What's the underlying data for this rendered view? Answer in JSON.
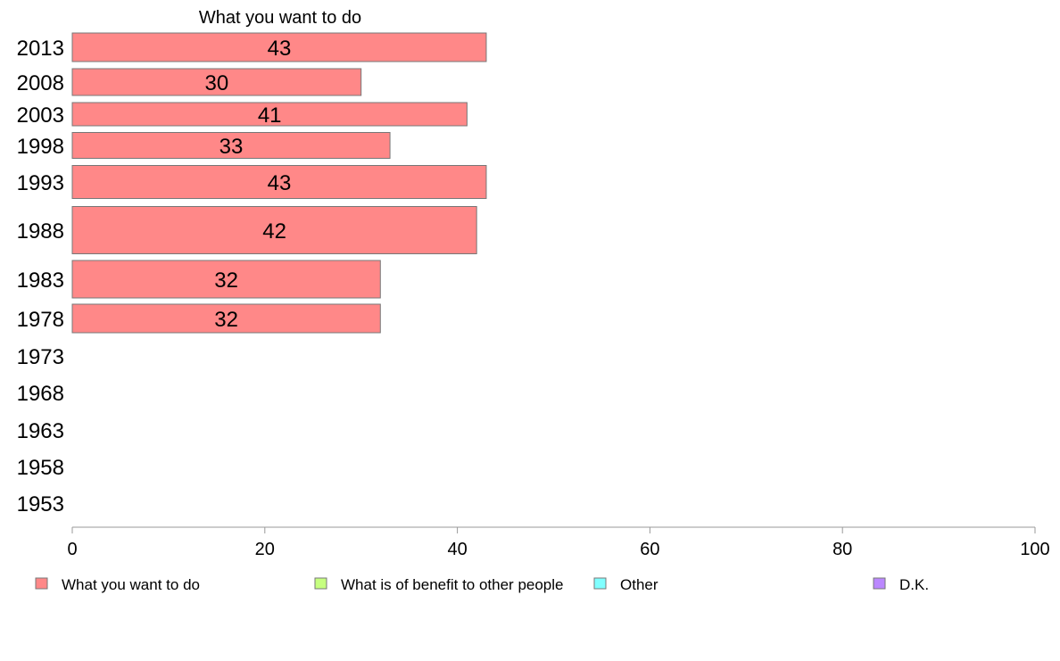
{
  "chart_data": {
    "type": "bar",
    "orientation": "horizontal",
    "title": "What you want to do",
    "categories": [
      "2013",
      "2008",
      "2003",
      "1998",
      "1993",
      "1988",
      "1983",
      "1978",
      "1973",
      "1968",
      "1963",
      "1958",
      "1953"
    ],
    "series": [
      {
        "name": "What you want to do",
        "color": "#ff8888",
        "values": [
          43,
          30,
          41,
          33,
          43,
          42,
          32,
          32,
          null,
          null,
          null,
          null,
          null
        ]
      }
    ],
    "legend": [
      {
        "name": "What you want to do",
        "color": "#ff8888"
      },
      {
        "name": "What is of benefit to other people",
        "color": "#c6ff80"
      },
      {
        "name": "Other",
        "color": "#80ffff"
      },
      {
        "name": "D.K.",
        "color": "#bb88ff"
      }
    ],
    "xlim": [
      0,
      100
    ],
    "xticks": [
      0,
      20,
      40,
      60,
      80,
      100
    ],
    "grid": false,
    "legend_position": "bottom"
  }
}
